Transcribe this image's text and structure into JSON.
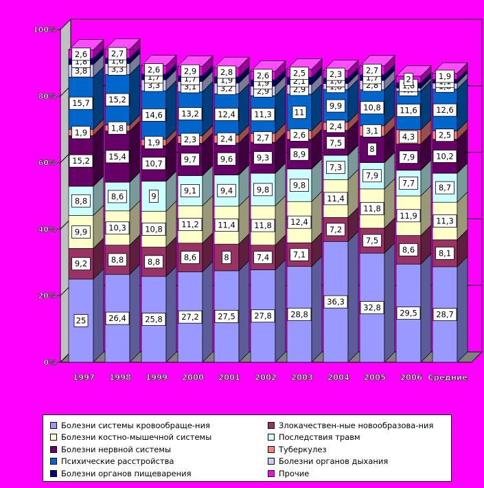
{
  "chart_data": {
    "type": "bar",
    "stacked": true,
    "percent": true,
    "three_d": true,
    "categories": [
      "1997",
      "1998",
      "1999",
      "2000",
      "2001",
      "2002",
      "2003",
      "2004",
      "2005",
      "2006",
      "Средние"
    ],
    "ylim": [
      0,
      100
    ],
    "yticks": [
      "0%",
      "20%",
      "40%",
      "60%",
      "80%",
      "100%"
    ],
    "grid": true,
    "legend_position": "bottom",
    "background": "#ff00ff",
    "series": [
      {
        "name": "Болезни системы кровообраще-ния",
        "color": "#9999ff",
        "values": [
          25,
          26.4,
          25.8,
          27.2,
          27.5,
          27.8,
          28.8,
          36.3,
          32.8,
          29.5,
          28.7
        ]
      },
      {
        "name": "Злокачествен-ные новообразова-ния",
        "color": "#993366",
        "values": [
          9.2,
          8.8,
          8.8,
          8.6,
          8,
          7.4,
          7.1,
          7.2,
          7.5,
          8.6,
          8.1
        ]
      },
      {
        "name": "Болезни костно-мышечной системы",
        "color": "#ffffcc",
        "values": [
          9.9,
          10.3,
          10.8,
          11.2,
          11.4,
          11.8,
          12.4,
          11.4,
          11.8,
          11.9,
          11.3
        ]
      },
      {
        "name": "Последствия травм",
        "color": "#ccffff",
        "values": [
          8.8,
          8.6,
          9,
          9.1,
          9.4,
          9.8,
          9.8,
          7.3,
          7.9,
          7.7,
          8.7
        ]
      },
      {
        "name": "Болезни нервной системы",
        "color": "#660066",
        "values": [
          15.2,
          15.4,
          10.7,
          9.7,
          9.6,
          9.3,
          8.9,
          7.5,
          8,
          7.9,
          10.2
        ]
      },
      {
        "name": "Туберкулез",
        "color": "#ff8080",
        "values": [
          1.9,
          1.8,
          1.9,
          2.3,
          2.4,
          2.7,
          2.6,
          2.4,
          3.1,
          4.3,
          2.5
        ]
      },
      {
        "name": "Психические расстройства",
        "color": "#0066cc",
        "values": [
          15.7,
          15.2,
          14.6,
          13.2,
          12.4,
          11.3,
          11,
          9.9,
          10.8,
          11.6,
          12.6
        ]
      },
      {
        "name": "Болезни органов дыхания",
        "color": "#ccccff",
        "values": [
          3.8,
          3.3,
          3.3,
          3.1,
          3.2,
          2.9,
          2.9,
          1.8,
          2.8,
          0.9,
          1.8
        ]
      },
      {
        "name": "Болезни органов пищеварения",
        "color": "#000080",
        "values": [
          1.8,
          1.6,
          1.7,
          1.7,
          1.9,
          1.9,
          2.1,
          1.6,
          1.7,
          1.6,
          1.1
        ]
      },
      {
        "name": "Прочие",
        "color": "#ff00ff",
        "values": [
          2.6,
          2.7,
          2.6,
          2.9,
          2.8,
          2.6,
          2.5,
          2.3,
          2.7,
          2,
          1.9
        ]
      }
    ]
  }
}
